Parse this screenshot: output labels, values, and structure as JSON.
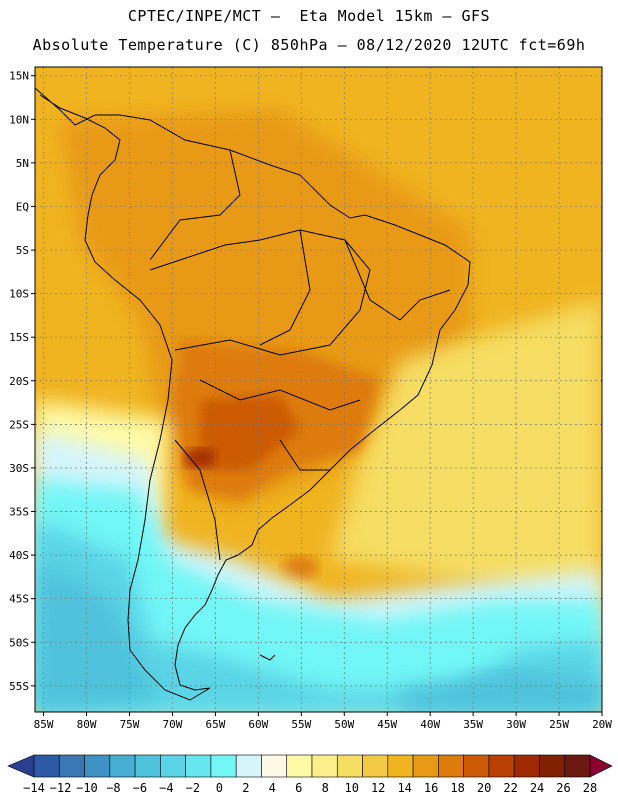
{
  "header": {
    "line1": "CPTEC/INPE/MCT –  Eta Model 15km – GFS",
    "line2": "Absolute Temperature (C) 850hPa – 08/12/2020 12UTC fct=69h"
  },
  "map": {
    "lat_labels": [
      "15N",
      "10N",
      "5N",
      "EQ",
      "5S",
      "10S",
      "15S",
      "20S",
      "25S",
      "30S",
      "35S",
      "40S",
      "45S",
      "50S",
      "55S"
    ],
    "lon_labels": [
      "85W",
      "80W",
      "75W",
      "70W",
      "65W",
      "60W",
      "55W",
      "50W",
      "45W",
      "40W",
      "35W",
      "30W",
      "25W",
      "20W"
    ],
    "extent": {
      "lon_min": -86,
      "lon_max": -20,
      "lat_min": -58,
      "lat_max": 16
    },
    "lat_values": [
      15,
      10,
      5,
      0,
      -5,
      -10,
      -15,
      -20,
      -25,
      -30,
      -35,
      -40,
      -45,
      -50,
      -55
    ],
    "lon_values": [
      -85,
      -80,
      -75,
      -70,
      -65,
      -60,
      -55,
      -50,
      -45,
      -40,
      -35,
      -30,
      -25,
      -20
    ]
  },
  "colorbar": {
    "labels": [
      "-14",
      "-12",
      "-10",
      "-8",
      "-6",
      "-4",
      "-2",
      "0",
      "2",
      "4",
      "6",
      "8",
      "10",
      "12",
      "14",
      "16",
      "18",
      "20",
      "22",
      "24",
      "26",
      "28"
    ],
    "colors": [
      "#2a3f8f",
      "#2e5aa3",
      "#3a77b5",
      "#3f93c4",
      "#45aed2",
      "#4fc2dc",
      "#5ad4e6",
      "#66e6ef",
      "#72f6f6",
      "#d5f5fb",
      "#fff8e6",
      "#fffaa6",
      "#fbee8b",
      "#f6dd63",
      "#f2c944",
      "#f0b421",
      "#e89a17",
      "#dd7b0c",
      "#cc5a05",
      "#b94000",
      "#a02a00",
      "#802000",
      "#6a1810",
      "#8a0030"
    ]
  }
}
